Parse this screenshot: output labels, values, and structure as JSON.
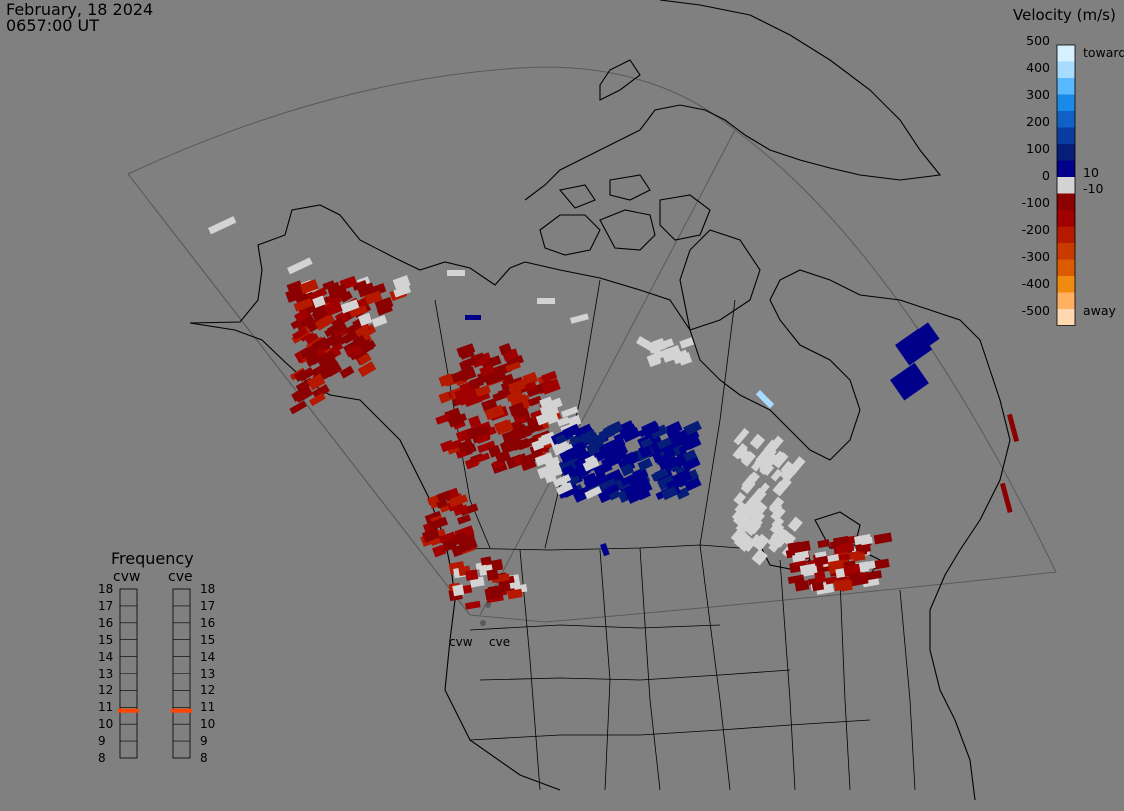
{
  "header": {
    "date": "February, 18 2024",
    "time": "0657:00 UT"
  },
  "velocity_scale": {
    "title": "Velocity (m/s)",
    "ticks": [
      "500",
      "400",
      "300",
      "200",
      "100",
      "10",
      "0",
      "-10",
      "-100",
      "-200",
      "-300",
      "-400",
      "-500"
    ],
    "toward_label": "toward",
    "away_label": "away",
    "colors_toward": [
      "#d6f0ff",
      "#a8dcff",
      "#5ab8ff",
      "#1a8ae8",
      "#1060c8",
      "#0a3ca0",
      "#061e7a",
      "#00008a"
    ],
    "colors_away": [
      "#8b0000",
      "#a00000",
      "#b51a00",
      "#c83a00",
      "#dc5a00",
      "#f08a10",
      "#ffb060",
      "#ffd8b0"
    ],
    "ground_scatter_color": "#d3d3d3"
  },
  "frequency_panel": {
    "title": "Frequency",
    "radars": [
      "cvw",
      "cve"
    ],
    "ticks": [
      "18",
      "17",
      "16",
      "15",
      "14",
      "13",
      "12",
      "11",
      "10",
      "9",
      "8"
    ],
    "current_mhz": {
      "cvw": 10.8,
      "cve": 10.8
    },
    "marker_color": "#ff4500"
  },
  "radar_sites": [
    "cvw",
    "cve"
  ]
}
